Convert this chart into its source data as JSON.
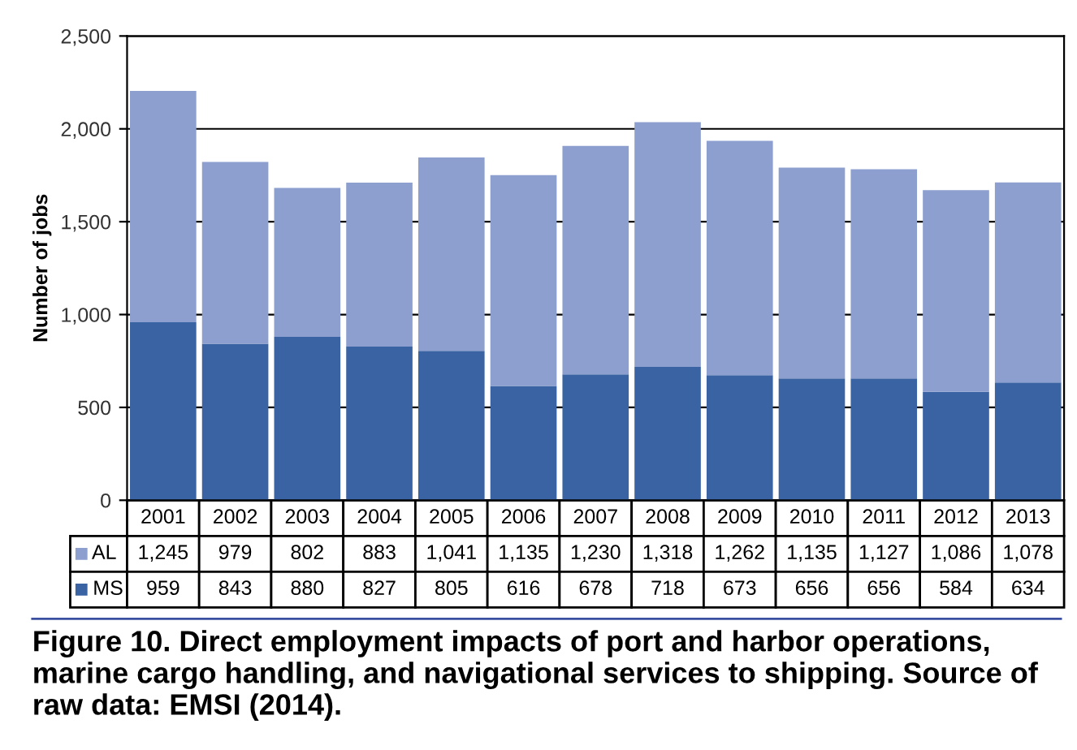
{
  "chart_data": {
    "type": "bar",
    "stacked": true,
    "ylabel": "Number of jobs",
    "categories": [
      "2001",
      "2002",
      "2003",
      "2004",
      "2005",
      "2006",
      "2007",
      "2008",
      "2009",
      "2010",
      "2011",
      "2012",
      "2013"
    ],
    "series": [
      {
        "name": "MS",
        "color": "#3a63a3",
        "values": [
          959,
          843,
          880,
          827,
          805,
          616,
          678,
          718,
          673,
          656,
          656,
          584,
          634
        ],
        "value_labels": [
          "959",
          "843",
          "880",
          "827",
          "805",
          "616",
          "678",
          "718",
          "673",
          "656",
          "656",
          "584",
          "634"
        ]
      },
      {
        "name": "AL",
        "color": "#8c9fcf",
        "values": [
          1245,
          979,
          802,
          883,
          1041,
          1135,
          1230,
          1318,
          1262,
          1135,
          1127,
          1086,
          1078
        ],
        "value_labels": [
          "1,245",
          "979",
          "802",
          "883",
          "1,041",
          "1,135",
          "1,230",
          "1,318",
          "1,262",
          "1,135",
          "1,127",
          "1,086",
          "1,078"
        ]
      }
    ],
    "ylim": [
      0,
      2500
    ],
    "yticks": [
      0,
      {
        "value": 500,
        "label": "500"
      },
      {
        "value": 1000,
        "label": "1,000"
      },
      {
        "value": 1500,
        "label": "1,500"
      },
      {
        "value": 2000,
        "label": "2,000"
      },
      {
        "value": 2500,
        "label": "2,500"
      }
    ],
    "grid": "y",
    "legend": "bottom left",
    "annotations": [
      "Figure 10. Direct employment impacts of port and harbor operations, marine cargo handling, and navigational services to shipping. Source of raw data: EMSI (2014)."
    ]
  }
}
